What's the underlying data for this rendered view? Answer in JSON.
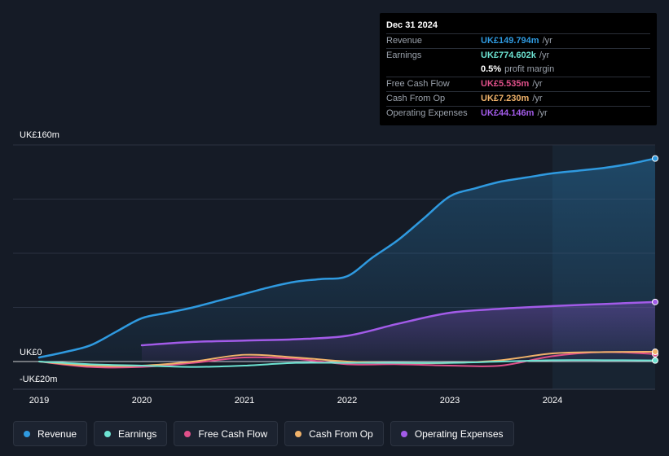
{
  "tooltip": {
    "date": "Dec 31 2024",
    "rows": [
      {
        "label": "Revenue",
        "value": "UK£149.794m",
        "unit": "/yr",
        "color": "#2f9ae0"
      },
      {
        "label": "Earnings",
        "value": "UK£774.602k",
        "unit": "/yr",
        "color": "#6de3d2"
      },
      {
        "label": "",
        "value": "0.5%",
        "unit": "profit margin",
        "color": "#ffffff"
      },
      {
        "label": "Free Cash Flow",
        "value": "UK£5.535m",
        "unit": "/yr",
        "color": "#e0508a"
      },
      {
        "label": "Cash From Op",
        "value": "UK£7.230m",
        "unit": "/yr",
        "color": "#f0b26a"
      },
      {
        "label": "Operating Expenses",
        "value": "UK£44.146m",
        "unit": "/yr",
        "color": "#a25be8"
      }
    ]
  },
  "axis": {
    "y_top_label": "UK£160m",
    "y_zero_label": "UK£0",
    "y_bottom_label": "-UK£20m"
  },
  "legend": [
    {
      "label": "Revenue",
      "color": "#2f9ae0"
    },
    {
      "label": "Earnings",
      "color": "#6de3d2"
    },
    {
      "label": "Free Cash Flow",
      "color": "#e0508a"
    },
    {
      "label": "Cash From Op",
      "color": "#f0b26a"
    },
    {
      "label": "Operating Expenses",
      "color": "#a25be8"
    }
  ],
  "chart_data": {
    "type": "area",
    "title": "",
    "xlabel": "",
    "ylabel": "",
    "xlim": [
      2018.9,
      2025.0
    ],
    "ylim": [
      -20,
      160
    ],
    "x_ticks": [
      2019,
      2020,
      2021,
      2022,
      2023,
      2024
    ],
    "x_tick_labels": [
      "2019",
      "2020",
      "2021",
      "2022",
      "2023",
      "2024"
    ],
    "grid": true,
    "highlight_from": 2024.0,
    "series": [
      {
        "name": "Revenue",
        "color": "#2f9ae0",
        "fill": true,
        "x": [
          2019.0,
          2019.25,
          2019.5,
          2019.75,
          2020.0,
          2020.25,
          2020.5,
          2020.75,
          2021.0,
          2021.25,
          2021.5,
          2021.75,
          2022.0,
          2022.25,
          2022.5,
          2022.75,
          2023.0,
          2023.25,
          2023.5,
          2023.75,
          2024.0,
          2024.25,
          2024.5,
          2024.75,
          2025.0
        ],
        "y": [
          3,
          7,
          12,
          22,
          32,
          36,
          40,
          45,
          50,
          55,
          59,
          61,
          63,
          77,
          90,
          106,
          122,
          128,
          133,
          136,
          139,
          141,
          143,
          146,
          150
        ]
      },
      {
        "name": "Operating Expenses",
        "color": "#a25be8",
        "fill": true,
        "x": [
          2020.0,
          2020.5,
          2021.0,
          2021.5,
          2022.0,
          2022.5,
          2023.0,
          2023.5,
          2024.0,
          2024.5,
          2025.0
        ],
        "y": [
          12,
          14.5,
          15.5,
          16.5,
          19,
          28,
          36,
          39,
          41,
          42.5,
          44
        ]
      },
      {
        "name": "Free Cash Flow",
        "color": "#e0508a",
        "fill": false,
        "x": [
          2019.0,
          2019.5,
          2020.0,
          2020.5,
          2021.0,
          2021.5,
          2022.0,
          2022.5,
          2023.0,
          2023.5,
          2024.0,
          2024.5,
          2025.0
        ],
        "y": [
          0,
          -4,
          -4,
          -1,
          3,
          2,
          -2,
          -2,
          -3,
          -3,
          4,
          7,
          5.5
        ]
      },
      {
        "name": "Cash From Op",
        "color": "#f0b26a",
        "fill": false,
        "x": [
          2019.0,
          2019.5,
          2020.0,
          2020.5,
          2021.0,
          2021.5,
          2022.0,
          2022.5,
          2023.0,
          2023.5,
          2024.0,
          2024.5,
          2025.0
        ],
        "y": [
          0,
          -3,
          -3,
          0,
          5,
          3,
          0,
          -1,
          -1,
          1,
          6,
          7,
          7.2
        ]
      },
      {
        "name": "Earnings",
        "color": "#6de3d2",
        "fill": false,
        "x": [
          2019.0,
          2019.5,
          2020.0,
          2020.5,
          2021.0,
          2021.5,
          2022.0,
          2022.5,
          2023.0,
          2023.5,
          2024.0,
          2024.5,
          2025.0
        ],
        "y": [
          0,
          -2,
          -3,
          -4,
          -3,
          -1,
          -1,
          -1,
          -1,
          0,
          1,
          1,
          0.8
        ]
      }
    ]
  }
}
